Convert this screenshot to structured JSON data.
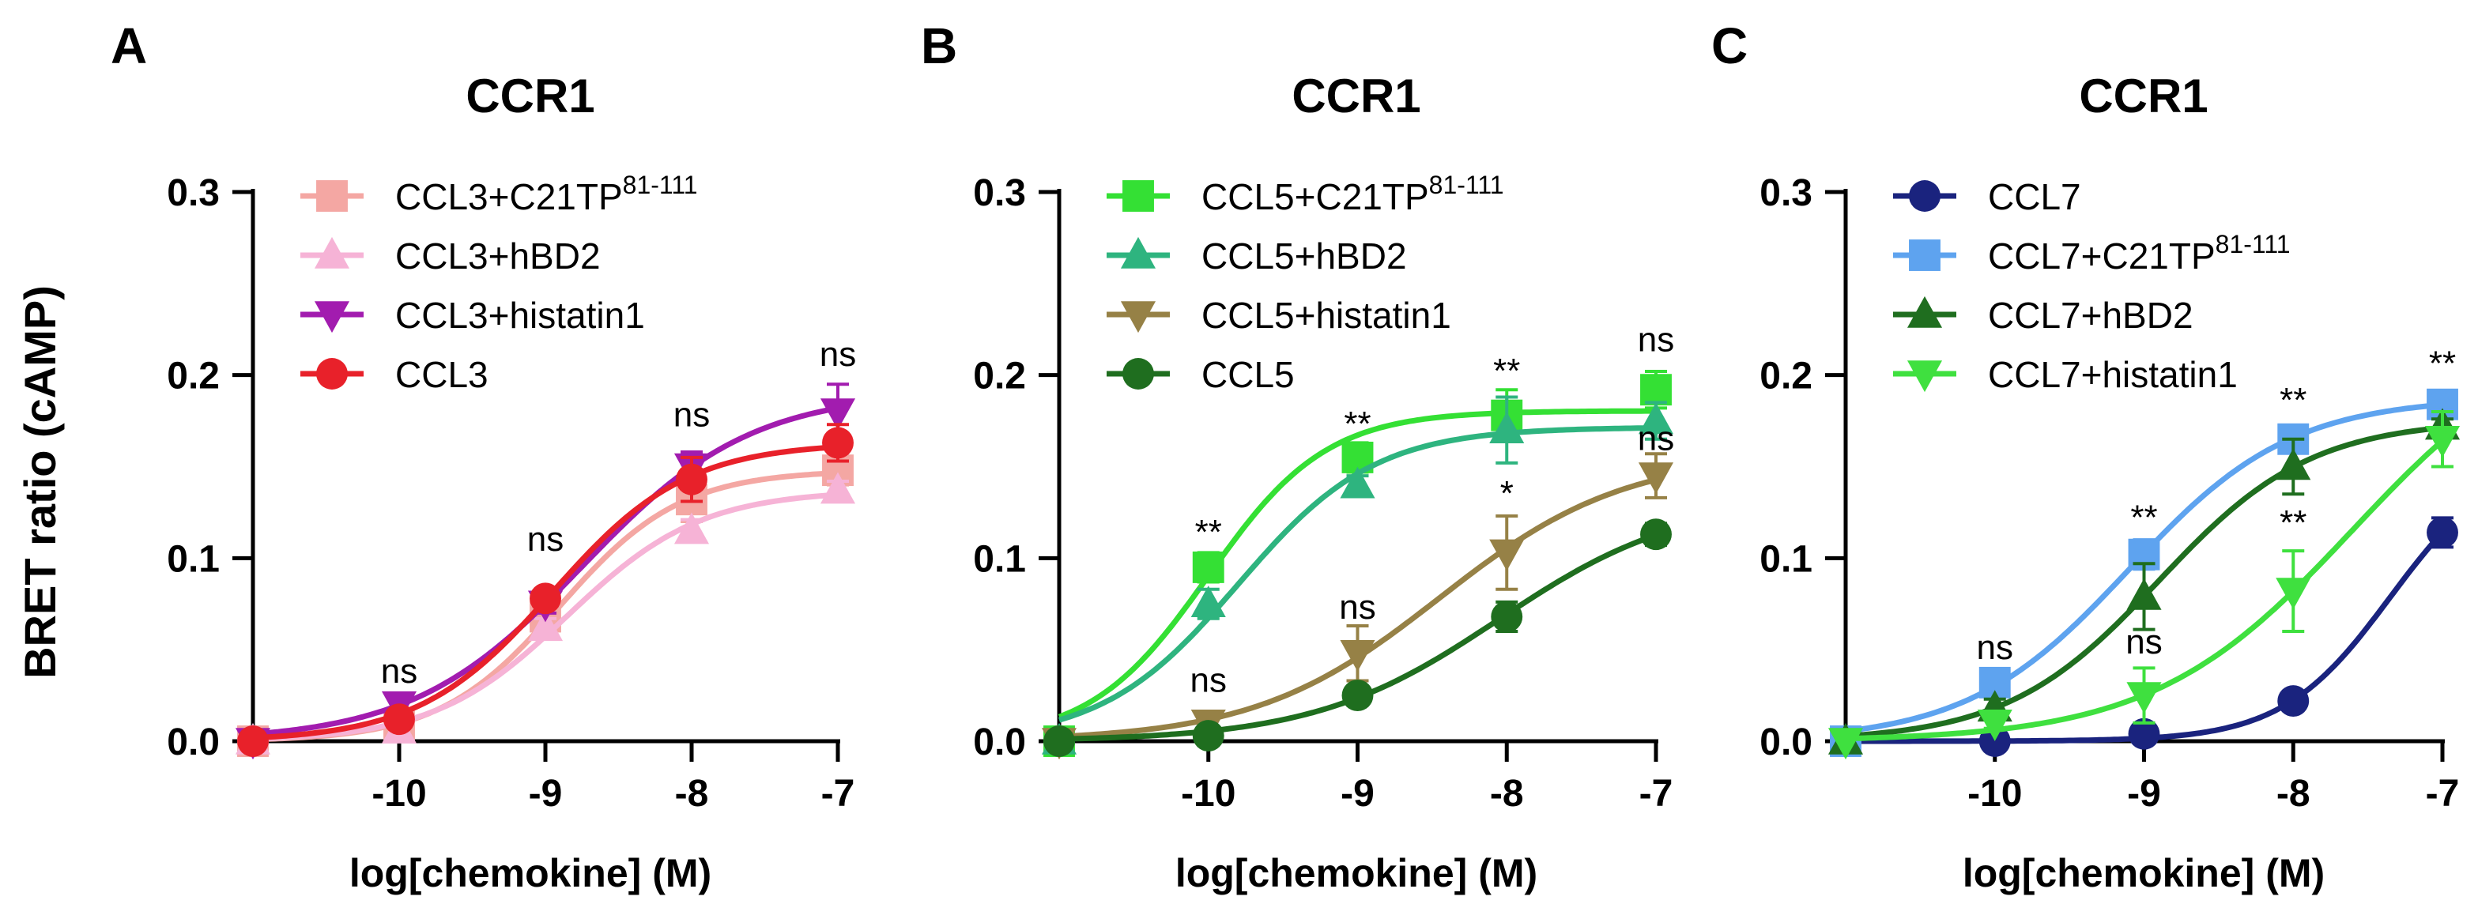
{
  "figure": {
    "ylabel": "BRET ratio  (cAMP)"
  },
  "chart_data": [
    {
      "panel_label": "A",
      "type": "line",
      "title": "CCR1",
      "xlabel": "log[chemokine] (M)",
      "x_ticks": [
        -10,
        -9,
        -8,
        -7
      ],
      "x_tick_labels": [
        "-10",
        "-9",
        "-8",
        "-7"
      ],
      "y_ticks": [
        0.0,
        0.1,
        0.2,
        0.3
      ],
      "y_tick_labels": [
        "0.0",
        "0.1",
        "0.2",
        "0.3"
      ],
      "xlim": [
        -11,
        -7
      ],
      "ylim": [
        0,
        0.3
      ],
      "series": [
        {
          "name": "CCL3+C21TP",
          "superscript": "81-111",
          "color": "#F4A7A3",
          "marker": "square",
          "x": [
            -11,
            -10,
            -9,
            -8,
            -7
          ],
          "y": [
            0.0,
            0.008,
            0.068,
            0.132,
            0.148
          ],
          "err": [
            0,
            0.004,
            0.006,
            0.012,
            0.008
          ]
        },
        {
          "name": "CCL3+hBD2",
          "color": "#F6B3D6",
          "marker": "triangle-up",
          "x": [
            -11,
            -10,
            -9,
            -8,
            -7
          ],
          "y": [
            0.0,
            0.006,
            0.062,
            0.115,
            0.137
          ],
          "err": [
            0,
            0.003,
            0.005,
            0.006,
            0.005
          ]
        },
        {
          "name": "CCL3+histatin1",
          "color": "#A21CAF",
          "marker": "triangle-down",
          "x": [
            -11,
            -10,
            -9,
            -8,
            -7
          ],
          "y": [
            0.0,
            0.02,
            0.075,
            0.15,
            0.18
          ],
          "err": [
            0,
            0.004,
            0.005,
            0.008,
            0.015
          ]
        },
        {
          "name": "CCL3",
          "color": "#E8212A",
          "marker": "circle",
          "x": [
            -11,
            -10,
            -9,
            -8,
            -7
          ],
          "y": [
            0.0,
            0.012,
            0.078,
            0.143,
            0.163
          ],
          "err": [
            0,
            0.003,
            0.004,
            0.012,
            0.01
          ]
        }
      ],
      "annotations": [
        {
          "x": -10,
          "y": 0.032,
          "text": "ns"
        },
        {
          "x": -9,
          "y": 0.104,
          "text": "ns"
        },
        {
          "x": -8,
          "y": 0.172,
          "text": "ns"
        },
        {
          "x": -7,
          "y": 0.205,
          "text": "ns"
        }
      ],
      "legend": "top-left"
    },
    {
      "panel_label": "B",
      "type": "line",
      "title": "CCR1",
      "xlabel": "log[chemokine] (M)",
      "x_ticks": [
        -10,
        -9,
        -8,
        -7
      ],
      "x_tick_labels": [
        "-10",
        "-9",
        "-8",
        "-7"
      ],
      "y_ticks": [
        0.0,
        0.1,
        0.2,
        0.3
      ],
      "y_tick_labels": [
        "0.0",
        "0.1",
        "0.2",
        "0.3"
      ],
      "xlim": [
        -11,
        -7
      ],
      "ylim": [
        0,
        0.3
      ],
      "series": [
        {
          "name": "CCL5+C21TP",
          "superscript": "81-111",
          "color": "#34E034",
          "marker": "square",
          "x": [
            -11,
            -10,
            -9,
            -8,
            -7
          ],
          "y": [
            0.0,
            0.095,
            0.155,
            0.178,
            0.192
          ],
          "err": [
            0,
            0.008,
            0.008,
            0.014,
            0.01
          ]
        },
        {
          "name": "CCL5+hBD2",
          "color": "#2EB47F",
          "marker": "triangle-up",
          "x": [
            -11,
            -10,
            -9,
            -8,
            -7
          ],
          "y": [
            0.0,
            0.075,
            0.14,
            0.17,
            0.175
          ],
          "err": [
            0,
            0.008,
            0.005,
            0.018,
            0.01
          ]
        },
        {
          "name": "CCL5+histatin1",
          "color": "#968146",
          "marker": "triangle-down",
          "x": [
            -11,
            -10,
            -9,
            -8,
            -7
          ],
          "y": [
            0.0,
            0.01,
            0.048,
            0.103,
            0.145
          ],
          "err": [
            0,
            0.003,
            0.015,
            0.02,
            0.012
          ]
        },
        {
          "name": "CCL5",
          "color": "#1F6E1F",
          "marker": "circle",
          "x": [
            -11,
            -10,
            -9,
            -8,
            -7
          ],
          "y": [
            0.0,
            0.003,
            0.025,
            0.068,
            0.113
          ],
          "err": [
            0,
            0.002,
            0.004,
            0.008,
            0.006
          ]
        }
      ],
      "annotations": [
        {
          "x": -10,
          "y": 0.027,
          "text": "ns"
        },
        {
          "x": -10,
          "y": 0.108,
          "text": "**"
        },
        {
          "x": -9,
          "y": 0.067,
          "text": "ns"
        },
        {
          "x": -9,
          "y": 0.167,
          "text": "**"
        },
        {
          "x": -8,
          "y": 0.129,
          "text": "*"
        },
        {
          "x": -8,
          "y": 0.196,
          "text": "**"
        },
        {
          "x": -7,
          "y": 0.159,
          "text": "ns"
        },
        {
          "x": -7,
          "y": 0.213,
          "text": "ns"
        }
      ],
      "legend": "top-left"
    },
    {
      "panel_label": "C",
      "type": "line",
      "title": "CCR1",
      "xlabel": "log[chemokine] (M)",
      "x_ticks": [
        -10,
        -9,
        -8,
        -7
      ],
      "x_tick_labels": [
        "-10",
        "-9",
        "-8",
        "-7"
      ],
      "y_ticks": [
        0.0,
        0.1,
        0.2,
        0.3
      ],
      "y_tick_labels": [
        "0.0",
        "0.1",
        "0.2",
        "0.3"
      ],
      "xlim": [
        -11,
        -7
      ],
      "ylim": [
        0,
        0.3
      ],
      "series": [
        {
          "name": "CCL7",
          "color": "#1A237E",
          "marker": "circle",
          "x": [
            -11,
            -10,
            -9,
            -8,
            -7
          ],
          "y": [
            0.0,
            0.0,
            0.004,
            0.022,
            0.114
          ],
          "err": [
            0,
            0.001,
            0.002,
            0.003,
            0.008
          ]
        },
        {
          "name": "CCL7+C21TP",
          "superscript": "81-111",
          "color": "#5EA3EF",
          "marker": "square",
          "x": [
            -11,
            -10,
            -9,
            -8,
            -7
          ],
          "y": [
            0.0,
            0.032,
            0.102,
            0.165,
            0.184
          ],
          "err": [
            0,
            0.003,
            0.008,
            0.005,
            0.004
          ]
        },
        {
          "name": "CCL7+hBD2",
          "color": "#1F6E1F",
          "marker": "triangle-up",
          "x": [
            -11,
            -10,
            -9,
            -8,
            -7
          ],
          "y": [
            0.0,
            0.018,
            0.079,
            0.15,
            0.172
          ],
          "err": [
            0,
            0.005,
            0.018,
            0.015,
            0.004
          ]
        },
        {
          "name": "CCL7+histatin1",
          "color": "#3FE03F",
          "marker": "triangle-down",
          "x": [
            -11,
            -10,
            -9,
            -8,
            -7
          ],
          "y": [
            0.0,
            0.01,
            0.025,
            0.082,
            0.165
          ],
          "err": [
            0,
            0.003,
            0.015,
            0.022,
            0.015
          ]
        }
      ],
      "annotations": [
        {
          "x": -10,
          "y": 0.045,
          "text": "ns"
        },
        {
          "x": -9,
          "y": 0.048,
          "text": "ns"
        },
        {
          "x": -9,
          "y": 0.116,
          "text": "**"
        },
        {
          "x": -8,
          "y": 0.113,
          "text": "**"
        },
        {
          "x": -8,
          "y": 0.18,
          "text": "**"
        },
        {
          "x": -7,
          "y": 0.2,
          "text": "**"
        }
      ],
      "legend": "top-left"
    }
  ]
}
